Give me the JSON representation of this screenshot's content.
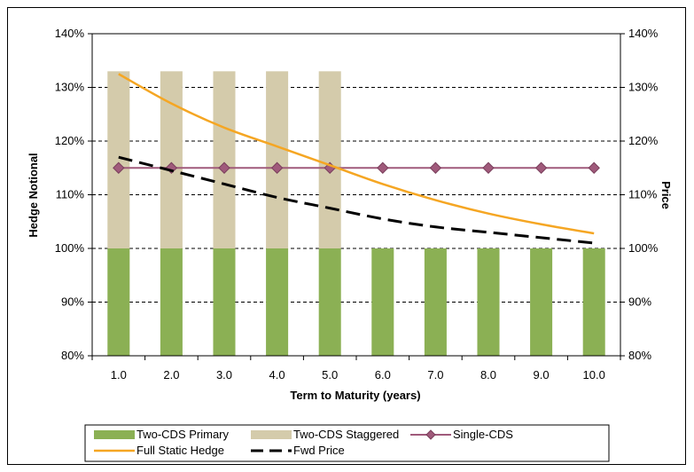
{
  "chart_data": {
    "type": "bar",
    "title": "",
    "xlabel": "Term to Maturity (years)",
    "ylabel": "Hedge Notional",
    "y2label": "Price",
    "ylim": [
      0.8,
      1.4
    ],
    "y2lim": [
      0.8,
      1.4
    ],
    "yticks": [
      "80%",
      "90%",
      "100%",
      "110%",
      "120%",
      "130%",
      "140%"
    ],
    "y2ticks": [
      "80%",
      "90%",
      "100%",
      "110%",
      "120%",
      "130%",
      "140%"
    ],
    "categories": [
      "1.0",
      "2.0",
      "3.0",
      "4.0",
      "5.0",
      "6.0",
      "7.0",
      "8.0",
      "9.0",
      "10.0"
    ],
    "grid": "horizontal dashed",
    "legend_position": "bottom",
    "series": [
      {
        "name": "Two-CDS Primary",
        "kind": "bar",
        "color": "#8bb054",
        "values": [
          1.0,
          1.0,
          1.0,
          1.0,
          1.0,
          1.0,
          1.0,
          1.0,
          1.0,
          1.0
        ]
      },
      {
        "name": "Two-CDS Staggered",
        "kind": "bar",
        "color": "#d4cbab",
        "values": [
          1.33,
          1.33,
          1.33,
          1.33,
          1.33,
          null,
          null,
          null,
          null,
          null
        ]
      },
      {
        "name": "Single-CDS",
        "kind": "line-marker",
        "color": "#a05a7b",
        "values": [
          1.15,
          1.15,
          1.15,
          1.15,
          1.15,
          1.15,
          1.15,
          1.15,
          1.15,
          1.15
        ]
      },
      {
        "name": "Full Static Hedge",
        "kind": "line",
        "color": "#f5a623",
        "values": [
          1.325,
          1.27,
          1.225,
          1.19,
          1.155,
          1.12,
          1.09,
          1.065,
          1.045,
          1.028
        ]
      },
      {
        "name": "Fwd Price",
        "kind": "dashed-line",
        "color": "#000000",
        "values": [
          1.17,
          1.145,
          1.12,
          1.095,
          1.075,
          1.055,
          1.04,
          1.03,
          1.02,
          1.01
        ]
      }
    ]
  }
}
